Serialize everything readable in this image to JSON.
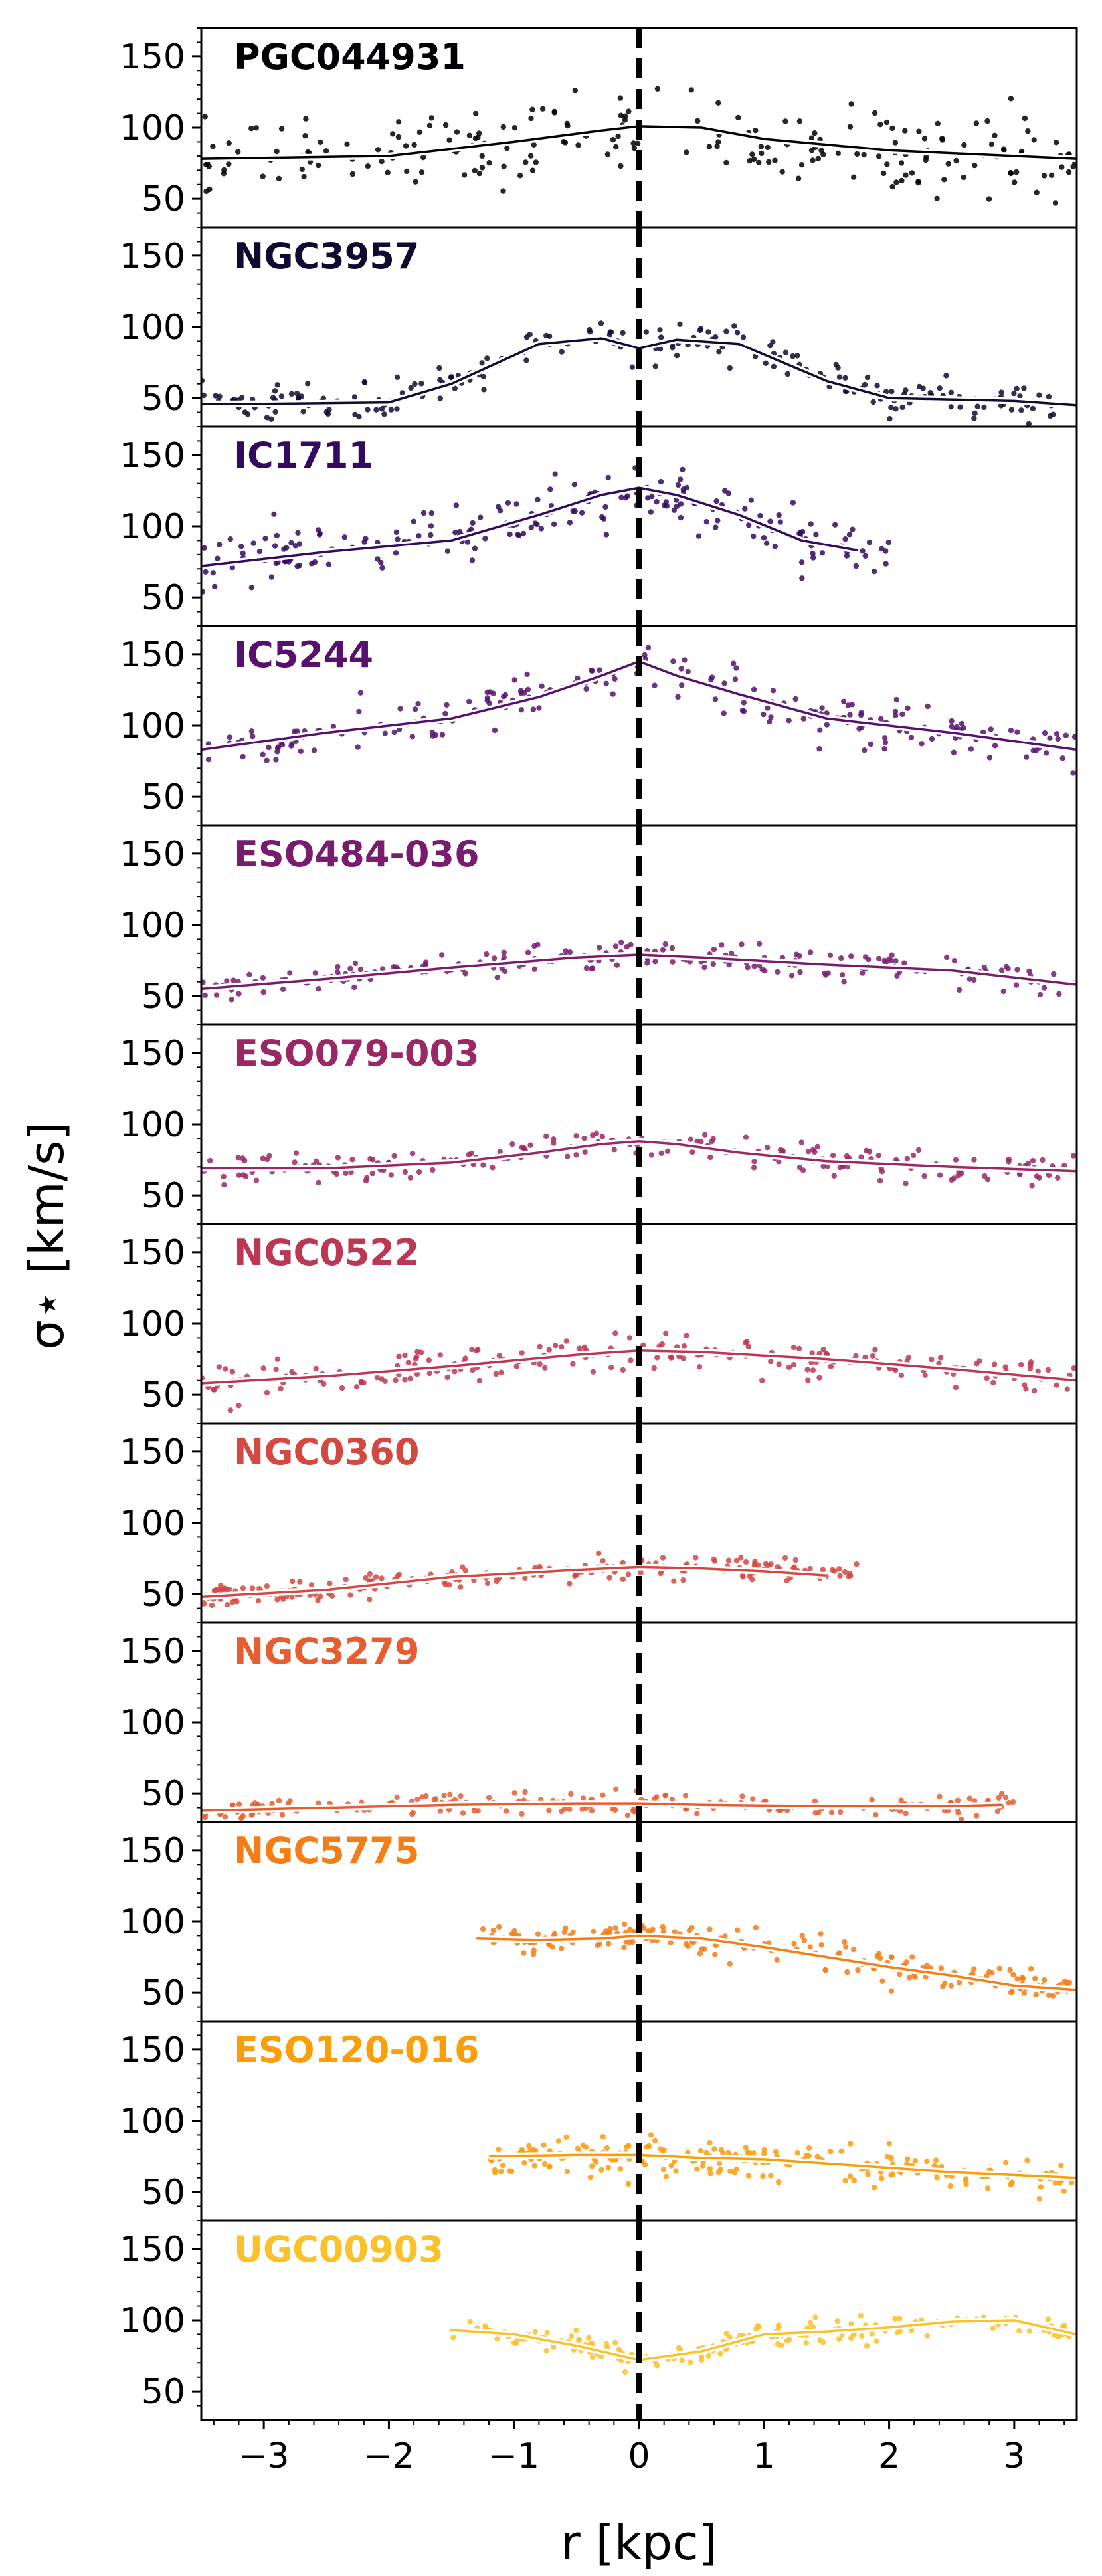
{
  "chart_data": {
    "type": "scatter",
    "figure_type": "stacked multi-panel scatter with binned median profiles",
    "xlabel": "r [kpc]",
    "ylabel": "σ⋆ [km/s]",
    "xlim": [
      -3.5,
      3.5
    ],
    "ylim": [
      30,
      170
    ],
    "xticks": [
      -3,
      -2,
      -1,
      0,
      1,
      2,
      3
    ],
    "xtick_labels": [
      "−3",
      "−2",
      "−1",
      "0",
      "1",
      "2",
      "3"
    ],
    "yticks": [
      50,
      100,
      150
    ],
    "ytick_labels": [
      "50",
      "100",
      "150"
    ],
    "vertical_reference": {
      "x": 0,
      "style": "dashed",
      "color": "#000000"
    },
    "colormap": "inferno",
    "panels": [
      {
        "name": "PGC044931",
        "color": "#000004",
        "x_range": [
          -3.5,
          3.5
        ],
        "scatter": 14,
        "profile": [
          [
            -3.5,
            78
          ],
          [
            -2.0,
            80
          ],
          [
            -1.0,
            90
          ],
          [
            -0.3,
            98
          ],
          [
            0.0,
            101
          ],
          [
            0.5,
            100
          ],
          [
            1.0,
            92
          ],
          [
            2.0,
            84
          ],
          [
            3.5,
            78
          ]
        ]
      },
      {
        "name": "NGC3957",
        "color": "#110a30",
        "x_range": [
          -3.5,
          3.5
        ],
        "scatter": 6,
        "profile": [
          [
            -3.5,
            46
          ],
          [
            -3.0,
            46
          ],
          [
            -2.0,
            47
          ],
          [
            -1.5,
            60
          ],
          [
            -0.8,
            88
          ],
          [
            -0.3,
            92
          ],
          [
            0.0,
            85
          ],
          [
            0.3,
            91
          ],
          [
            0.8,
            88
          ],
          [
            1.5,
            62
          ],
          [
            2.0,
            50
          ],
          [
            3.0,
            48
          ],
          [
            3.5,
            45
          ]
        ]
      },
      {
        "name": "IC1711",
        "color": "#320a5e",
        "x_range": [
          -3.5,
          2.0
        ],
        "scatter": 10,
        "profile": [
          [
            -3.5,
            72
          ],
          [
            -2.5,
            82
          ],
          [
            -1.5,
            90
          ],
          [
            -0.8,
            108
          ],
          [
            -0.3,
            122
          ],
          [
            0.0,
            127
          ],
          [
            0.3,
            122
          ],
          [
            0.8,
            108
          ],
          [
            1.3,
            90
          ],
          [
            1.75,
            83
          ]
        ]
      },
      {
        "name": "IC5244",
        "color": "#57106e",
        "x_range": [
          -3.5,
          3.5
        ],
        "scatter": 8,
        "profile": [
          [
            -3.5,
            83
          ],
          [
            -2.5,
            95
          ],
          [
            -1.5,
            105
          ],
          [
            -0.8,
            120
          ],
          [
            -0.3,
            135
          ],
          [
            0.0,
            145
          ],
          [
            0.3,
            135
          ],
          [
            0.8,
            122
          ],
          [
            1.5,
            105
          ],
          [
            2.5,
            95
          ],
          [
            3.5,
            83
          ]
        ]
      },
      {
        "name": "ESO484-036",
        "color": "#781c6d",
        "x_range": [
          -3.5,
          3.5
        ],
        "scatter": 5,
        "profile": [
          [
            -3.5,
            55
          ],
          [
            -2.5,
            62
          ],
          [
            -1.5,
            70
          ],
          [
            -0.5,
            77
          ],
          [
            0.0,
            79
          ],
          [
            0.5,
            77
          ],
          [
            1.5,
            72
          ],
          [
            2.5,
            68
          ],
          [
            3.5,
            58
          ]
        ]
      },
      {
        "name": "ESO079-003",
        "color": "#9a2865",
        "x_range": [
          -3.5,
          3.5
        ],
        "scatter": 5,
        "profile": [
          [
            -3.5,
            69
          ],
          [
            -2.5,
            69
          ],
          [
            -1.5,
            73
          ],
          [
            -0.8,
            80
          ],
          [
            -0.3,
            86
          ],
          [
            0.0,
            88
          ],
          [
            0.3,
            86
          ],
          [
            0.8,
            80
          ],
          [
            1.5,
            74
          ],
          [
            2.5,
            70
          ],
          [
            3.5,
            67
          ]
        ]
      },
      {
        "name": "NGC0522",
        "color": "#bc3754",
        "x_range": [
          -3.5,
          3.5
        ],
        "scatter": 6,
        "profile": [
          [
            -3.5,
            58
          ],
          [
            -2.5,
            63
          ],
          [
            -1.5,
            70
          ],
          [
            -0.5,
            78
          ],
          [
            0.0,
            81
          ],
          [
            0.5,
            80
          ],
          [
            1.5,
            75
          ],
          [
            2.5,
            68
          ],
          [
            3.5,
            60
          ]
        ]
      },
      {
        "name": "NGC0360",
        "color": "#d44842",
        "x_range": [
          -3.5,
          1.75
        ],
        "scatter": 4,
        "profile": [
          [
            -3.5,
            48
          ],
          [
            -2.5,
            53
          ],
          [
            -1.5,
            62
          ],
          [
            -0.5,
            67
          ],
          [
            0.0,
            69
          ],
          [
            0.5,
            68
          ],
          [
            1.0,
            66
          ],
          [
            1.5,
            63
          ]
        ]
      },
      {
        "name": "NGC3279",
        "color": "#e65d2f",
        "x_range": [
          -3.5,
          3.0
        ],
        "scatter": 4,
        "profile": [
          [
            -3.5,
            38
          ],
          [
            -2.5,
            40
          ],
          [
            -1.5,
            42
          ],
          [
            -0.5,
            43
          ],
          [
            0.0,
            43
          ],
          [
            0.5,
            42
          ],
          [
            1.5,
            41
          ],
          [
            2.5,
            41
          ],
          [
            2.9,
            42
          ]
        ]
      },
      {
        "name": "NGC5775",
        "color": "#f57d15",
        "x_range": [
          -1.3,
          3.5
        ],
        "scatter": 5,
        "profile": [
          [
            -1.3,
            88
          ],
          [
            -0.8,
            87
          ],
          [
            -0.3,
            88
          ],
          [
            0.0,
            90
          ],
          [
            0.5,
            88
          ],
          [
            1.0,
            82
          ],
          [
            1.5,
            75
          ],
          [
            2.0,
            68
          ],
          [
            2.5,
            62
          ],
          [
            3.0,
            55
          ],
          [
            3.5,
            52
          ]
        ]
      },
      {
        "name": "ESO120-016",
        "color": "#fa9e0a",
        "x_range": [
          -1.2,
          3.5
        ],
        "scatter": 6,
        "profile": [
          [
            -1.2,
            75
          ],
          [
            -0.5,
            76
          ],
          [
            0.0,
            76
          ],
          [
            0.5,
            74
          ],
          [
            1.0,
            73
          ],
          [
            1.5,
            70
          ],
          [
            2.0,
            67
          ],
          [
            2.5,
            64
          ],
          [
            3.0,
            62
          ],
          [
            3.5,
            60
          ]
        ]
      },
      {
        "name": "UGC00903",
        "color": "#fac228",
        "x_range": [
          -1.5,
          3.5
        ],
        "scatter": 4,
        "profile": [
          [
            -1.5,
            93
          ],
          [
            -1.0,
            90
          ],
          [
            -0.5,
            82
          ],
          [
            0.0,
            72
          ],
          [
            0.5,
            78
          ],
          [
            1.0,
            90
          ],
          [
            1.5,
            92
          ],
          [
            2.0,
            95
          ],
          [
            2.5,
            99
          ],
          [
            3.0,
            100
          ],
          [
            3.5,
            90
          ]
        ]
      }
    ]
  }
}
